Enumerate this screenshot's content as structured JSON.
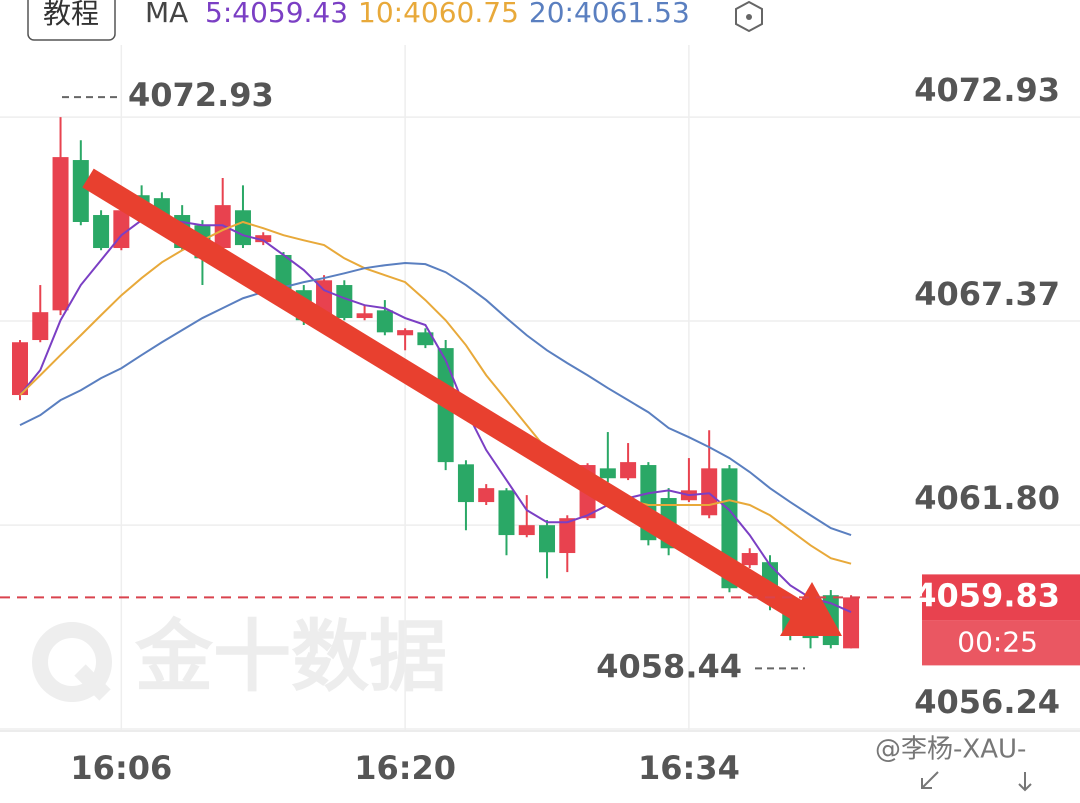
{
  "chart_data": {
    "type": "candlestick",
    "button": "教程",
    "ma_label": "MA",
    "categories": [
      null,
      null,
      null,
      null,
      null,
      "16:06",
      null,
      null,
      null,
      null,
      null,
      null,
      null,
      null,
      null,
      null,
      null,
      null,
      null,
      "16:20",
      null,
      null,
      null,
      null,
      null,
      null,
      null,
      null,
      null,
      null,
      null,
      null,
      null,
      "16:34",
      null,
      null,
      null,
      null,
      null,
      null,
      null,
      null
    ],
    "open": [
      4065.35,
      4066.85,
      4067.66,
      4071.76,
      4070.26,
      4069.36,
      4070.8,
      4070.72,
      4070.26,
      4069.98,
      4069.36,
      4070.39,
      4069.52,
      4069.17,
      4068.21,
      4067.39,
      4068.35,
      4067.45,
      4067.66,
      4066.98,
      4067.06,
      4066.63,
      4063.46,
      4062.43,
      4062.75,
      4061.53,
      4061.8,
      4061.04,
      4061.99,
      4063.35,
      4063.08,
      4063.44,
      4062.54,
      4062.48,
      4062.07,
      4063.35,
      4060.71,
      4060.79,
      4059.81,
      4059.54,
      4059.89,
      4058.44
    ],
    "high": [
      4066.85,
      4068.35,
      4072.93,
      4072.3,
      4070.39,
      4070.8,
      4071.07,
      4070.88,
      4070.53,
      4070.12,
      4071.27,
      4071.07,
      4069.79,
      4069.25,
      4068.35,
      4068.62,
      4068.48,
      4067.8,
      4067.94,
      4067.17,
      4067.17,
      4066.85,
      4063.57,
      4062.92,
      4062.81,
      4062.62,
      4061.94,
      4062.07,
      4063.49,
      4064.34,
      4064.04,
      4063.52,
      4062.81,
      4063.63,
      4064.39,
      4063.44,
      4061.17,
      4060.98,
      4059.89,
      4059.62,
      4060.03,
      4059.89
    ],
    "low": [
      4065.21,
      4066.79,
      4067.53,
      4069.98,
      4069.3,
      4069.3,
      4070.12,
      4069.98,
      4069.3,
      4068.35,
      4069.25,
      4069.36,
      4069.44,
      4067.99,
      4067.26,
      4067.34,
      4067.39,
      4067.39,
      4066.98,
      4066.57,
      4066.63,
      4063.3,
      4061.66,
      4062.35,
      4060.98,
      4061.47,
      4060.35,
      4060.52,
      4061.94,
      4062.97,
      4063.03,
      4061.25,
      4060.98,
      4062.43,
      4061.99,
      4059.97,
      4060.63,
      4059.48,
      4058.66,
      4058.44,
      4058.44,
      4058.44
    ],
    "close": [
      4066.79,
      4067.61,
      4071.84,
      4070.07,
      4069.36,
      4070.39,
      4070.26,
      4070.12,
      4069.36,
      4069.08,
      4070.53,
      4069.44,
      4069.71,
      4068.07,
      4067.39,
      4068.48,
      4067.45,
      4067.58,
      4067.06,
      4067.12,
      4066.71,
      4063.52,
      4062.43,
      4062.81,
      4061.53,
      4061.8,
      4061.06,
      4061.99,
      4063.44,
      4063.08,
      4063.52,
      4061.39,
      4061.17,
      4062.75,
      4063.35,
      4060.08,
      4061.04,
      4059.81,
      4058.88,
      4058.72,
      4058.53,
      4059.83
    ],
    "up_color": "#e8424f",
    "down_color": "#2aa866",
    "series": [
      {
        "name": "5:4059.43",
        "color": "#7b3fc4",
        "values": [
          4065.35,
          4066.03,
          4067.39,
          4068.35,
          4069.03,
          4069.71,
          4070.12,
          4070.12,
          4070.07,
          4069.98,
          4069.98,
          4069.71,
          4069.57,
          4069.17,
          4068.76,
          4068.21,
          4067.99,
          4067.8,
          4067.72,
          4067.45,
          4067.26,
          4066.3,
          4064.94,
          4063.85,
          4063.03,
          4062.21,
          4061.88,
          4061.88,
          4062.07,
          4062.35,
          4062.54,
          4062.67,
          4062.75,
          4062.62,
          4062.67,
          4062.21,
          4061.53,
          4060.71,
          4060.16,
          4059.81,
          4059.67,
          4059.43
        ]
      },
      {
        "name": "10:4060.75",
        "color": "#e8a93a",
        "values": [
          4065.35,
          4065.89,
          4066.44,
          4066.98,
          4067.53,
          4068.07,
          4068.54,
          4068.97,
          4069.3,
          4069.57,
          4069.85,
          4070.07,
          4069.9,
          4069.71,
          4069.57,
          4069.44,
          4069.08,
          4068.81,
          4068.62,
          4068.43,
          4067.94,
          4067.39,
          4066.71,
          4065.89,
          4065.21,
          4064.53,
          4063.85,
          4063.3,
          4062.97,
          4062.7,
          4062.48,
          4062.35,
          4062.35,
          4062.35,
          4062.35,
          4062.48,
          4062.35,
          4062.07,
          4061.66,
          4061.25,
          4060.9,
          4060.75
        ]
      },
      {
        "name": "20:4061.53",
        "color": "#5a7fc0",
        "values": [
          4064.53,
          4064.8,
          4065.21,
          4065.48,
          4065.81,
          4066.08,
          4066.44,
          4066.79,
          4067.12,
          4067.45,
          4067.72,
          4067.99,
          4068.16,
          4068.29,
          4068.43,
          4068.54,
          4068.67,
          4068.81,
          4068.89,
          4068.95,
          4068.92,
          4068.7,
          4068.35,
          4067.94,
          4067.45,
          4066.98,
          4066.57,
          4066.22,
          4065.89,
          4065.54,
          4065.21,
          4064.88,
          4064.45,
          4064.2,
          4063.93,
          4063.63,
          4063.25,
          4062.81,
          4062.43,
          4062.07,
          4061.72,
          4061.53
        ]
      }
    ],
    "ylim": [
      4056.24,
      4074.5
    ],
    "yticks": [
      4056.24,
      {
        "value": 4061.8,
        "label": "4061.80"
      },
      4067.37,
      4072.93
    ],
    "grid": true,
    "last_price": 4059.83,
    "countdown": "00:25",
    "max_label": 4072.93,
    "min_label": 4058.44,
    "watermark": "金十数据",
    "credit": "@李杨-XAU-"
  }
}
